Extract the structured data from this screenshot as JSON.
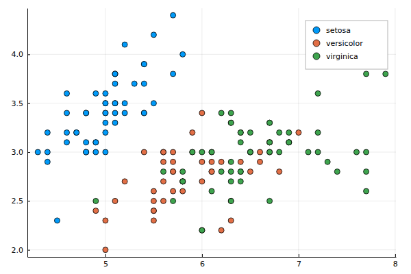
{
  "chart_data": {
    "type": "scatter",
    "grid": true,
    "legend": "top-right",
    "marker": "circle",
    "xlim": [
      4.192,
      8.008
    ],
    "ylim": [
      1.928,
      4.472
    ],
    "xticks": [
      5,
      6,
      7,
      8
    ],
    "yticks": [
      {
        "value": 2,
        "label": "2.0"
      },
      2.5,
      {
        "value": 3,
        "label": "3.0"
      },
      3.5,
      {
        "value": 4,
        "label": "4.0"
      }
    ],
    "series": [
      {
        "name": "setosa",
        "color": "#009af9",
        "x": [
          5.1,
          4.9,
          4.7,
          4.6,
          5.0,
          5.4,
          4.6,
          5.0,
          4.4,
          4.9,
          5.4,
          4.8,
          4.8,
          4.3,
          5.8,
          5.7,
          5.4,
          5.1,
          5.7,
          5.1,
          5.4,
          5.1,
          4.6,
          5.1,
          4.8,
          5.0,
          5.0,
          5.2,
          5.2,
          4.7,
          4.8,
          5.4,
          5.2,
          5.5,
          4.9,
          5.0,
          5.5,
          4.9,
          4.4,
          5.1,
          5.0,
          4.5,
          4.4,
          5.0,
          5.1,
          4.8,
          5.1,
          4.6,
          5.3,
          5.0
        ],
        "values": [
          3.5,
          3.0,
          3.2,
          3.1,
          3.6,
          3.9,
          3.4,
          3.4,
          2.9,
          3.1,
          3.7,
          3.4,
          3.0,
          3.0,
          4.0,
          4.4,
          3.9,
          3.5,
          3.8,
          3.8,
          3.4,
          3.7,
          3.6,
          3.3,
          3.4,
          3.0,
          3.4,
          3.5,
          3.4,
          3.2,
          3.1,
          3.4,
          4.1,
          4.2,
          3.1,
          3.2,
          3.5,
          3.6,
          3.0,
          3.4,
          3.5,
          2.3,
          3.2,
          3.5,
          3.8,
          3.0,
          3.8,
          3.2,
          3.7,
          3.3
        ]
      },
      {
        "name": "versicolor",
        "color": "#e26f46",
        "x": [
          7.0,
          6.4,
          6.9,
          5.5,
          6.5,
          5.7,
          6.3,
          4.9,
          6.6,
          5.2,
          5.0,
          5.9,
          6.0,
          6.1,
          5.6,
          6.7,
          5.6,
          5.8,
          6.2,
          5.6,
          5.9,
          6.1,
          6.3,
          6.1,
          6.4,
          6.6,
          6.8,
          6.7,
          6.0,
          5.7,
          5.5,
          5.5,
          5.8,
          6.0,
          5.4,
          6.0,
          6.7,
          6.3,
          5.6,
          5.5,
          5.5,
          6.1,
          5.8,
          5.0,
          5.6,
          5.7,
          5.7,
          6.2,
          5.1,
          5.7
        ],
        "values": [
          3.2,
          3.2,
          3.1,
          2.3,
          2.8,
          2.8,
          3.3,
          2.4,
          2.9,
          2.7,
          2.0,
          3.0,
          2.2,
          2.9,
          2.9,
          3.1,
          3.0,
          2.7,
          2.2,
          2.5,
          3.2,
          2.8,
          2.5,
          2.8,
          2.9,
          3.0,
          2.8,
          3.0,
          2.9,
          2.6,
          2.4,
          2.4,
          2.7,
          2.7,
          3.0,
          3.4,
          3.1,
          2.3,
          3.0,
          2.5,
          2.6,
          3.0,
          2.6,
          2.3,
          2.7,
          3.0,
          2.9,
          2.9,
          2.5,
          2.8
        ]
      },
      {
        "name": "virginica",
        "color": "#3ea44e",
        "x": [
          6.3,
          5.8,
          7.1,
          6.3,
          6.5,
          7.6,
          4.9,
          7.3,
          6.7,
          7.2,
          6.5,
          6.4,
          6.8,
          5.7,
          5.8,
          6.4,
          6.5,
          7.7,
          7.7,
          6.0,
          6.9,
          5.6,
          7.7,
          6.3,
          6.7,
          7.2,
          6.2,
          6.1,
          6.4,
          7.2,
          7.4,
          7.9,
          6.4,
          6.3,
          6.1,
          7.7,
          6.3,
          6.4,
          6.0,
          6.9,
          6.7,
          6.9,
          5.8,
          6.8,
          6.7,
          6.7,
          6.3,
          6.5,
          6.2,
          5.9
        ],
        "values": [
          3.3,
          2.7,
          3.0,
          2.9,
          3.0,
          3.0,
          2.5,
          2.9,
          2.5,
          3.6,
          3.2,
          2.7,
          3.0,
          2.5,
          2.8,
          3.2,
          3.0,
          3.8,
          2.6,
          2.2,
          3.2,
          2.8,
          2.8,
          2.7,
          3.3,
          3.2,
          2.8,
          3.0,
          2.8,
          3.0,
          2.8,
          3.8,
          2.8,
          2.8,
          2.6,
          3.0,
          3.4,
          3.1,
          3.0,
          3.1,
          3.1,
          3.1,
          2.7,
          3.2,
          3.3,
          3.0,
          2.5,
          3.0,
          3.4,
          3.0
        ]
      }
    ]
  }
}
